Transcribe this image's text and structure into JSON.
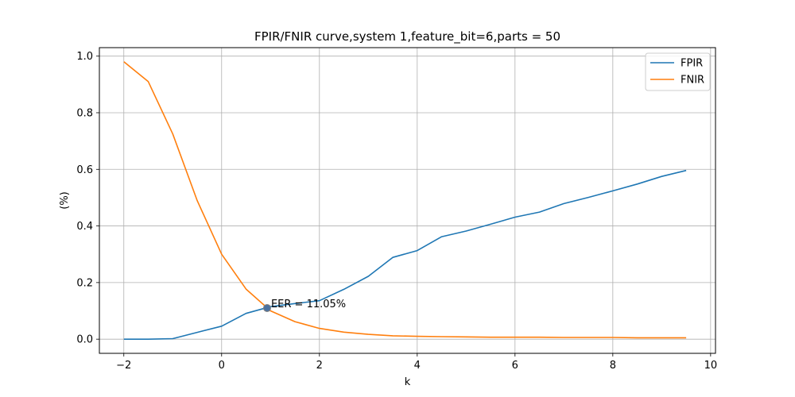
{
  "chart_data": {
    "type": "line",
    "title": "FPIR/FNIR curve,system 1,feature_bit=6,parts = 50",
    "xlabel": "k",
    "ylabel": "(%)",
    "xlim": [
      -2.5,
      10.1
    ],
    "ylim": [
      -0.05,
      1.03
    ],
    "xticks": [
      -2,
      0,
      2,
      4,
      6,
      8,
      10
    ],
    "yticks": [
      0.0,
      0.2,
      0.4,
      0.6,
      0.8,
      1.0
    ],
    "xtick_labels": [
      "−2",
      "0",
      "2",
      "4",
      "6",
      "8",
      "10"
    ],
    "ytick_labels": [
      "0.0",
      "0.2",
      "0.4",
      "0.6",
      "0.8",
      "1.0"
    ],
    "grid": true,
    "legend_position": "top-right",
    "x": [
      -2,
      -1.5,
      -1,
      -0.5,
      0,
      0.5,
      1,
      1.5,
      2,
      2.5,
      3,
      3.5,
      4,
      4.5,
      5,
      5.5,
      6,
      6.5,
      7,
      7.5,
      8,
      8.5,
      9,
      9.5
    ],
    "series": [
      {
        "name": "FPIR",
        "color": "#1f77b4",
        "values": [
          0.0,
          0.0,
          0.002,
          0.024,
          0.046,
          0.091,
          0.115,
          0.126,
          0.136,
          0.176,
          0.222,
          0.289,
          0.313,
          0.362,
          0.382,
          0.406,
          0.431,
          0.449,
          0.479,
          0.501,
          0.524,
          0.548,
          0.575,
          0.596
        ]
      },
      {
        "name": "FNIR",
        "color": "#ff7f0e",
        "values": [
          0.98,
          0.91,
          0.725,
          0.49,
          0.3,
          0.177,
          0.1,
          0.062,
          0.038,
          0.025,
          0.017,
          0.012,
          0.01,
          0.009,
          0.008,
          0.007,
          0.007,
          0.007,
          0.006,
          0.006,
          0.006,
          0.005,
          0.005,
          0.005
        ]
      }
    ],
    "eer_point": {
      "x": 0.93,
      "y": 0.11
    },
    "annotation": "EER = 11.05%"
  }
}
